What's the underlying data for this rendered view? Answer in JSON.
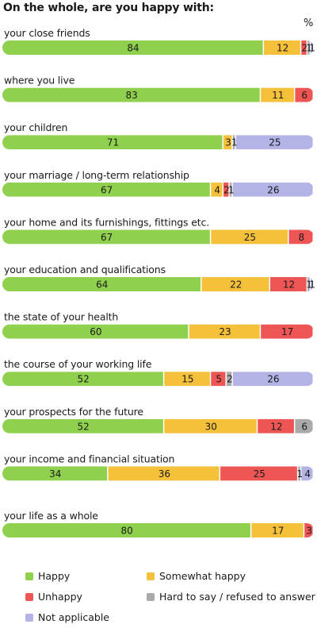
{
  "chart_data": {
    "type": "bar",
    "orientation": "horizontal",
    "stacked": true,
    "title": "On the whole, are you happy with:",
    "unit": "%",
    "series": [
      {
        "name": "Happy",
        "color": "#8fd14f",
        "values": [
          84,
          83,
          71,
          67,
          67,
          64,
          60,
          52,
          52,
          34,
          80
        ]
      },
      {
        "name": "Somewhat happy",
        "color": "#f5c03a",
        "values": [
          12,
          11,
          3,
          4,
          25,
          22,
          23,
          15,
          30,
          36,
          17
        ]
      },
      {
        "name": "Unhappy",
        "color": "#ee5555",
        "values": [
          2,
          6,
          0,
          2,
          8,
          12,
          17,
          5,
          12,
          25,
          3
        ]
      },
      {
        "name": "Hard to say / refused to answer",
        "color": "#aaaaaa",
        "values": [
          1,
          0,
          1,
          1,
          0,
          1,
          0,
          2,
          6,
          1,
          0
        ]
      },
      {
        "name": "Not applicable",
        "color": "#b3b3e6",
        "values": [
          1,
          0,
          25,
          26,
          0,
          1,
          0,
          26,
          0,
          4,
          0
        ]
      }
    ],
    "categories": [
      "your close friends",
      "where you live",
      "your children",
      "your marriage / long-term relationship",
      "your home and its furnishings, fittings etc.",
      "your education and qualifications",
      "the state of your health",
      "the course of your working life",
      "your prospects for the future",
      "your income and financial situation",
      "your life as a whole"
    ],
    "legend_position": "bottom"
  },
  "legend": {
    "happy": "Happy",
    "somewhat": "Somewhat happy",
    "unhappy": "Unhappy",
    "hard": "Hard to say / refused to answer",
    "na": "Not applicable"
  }
}
